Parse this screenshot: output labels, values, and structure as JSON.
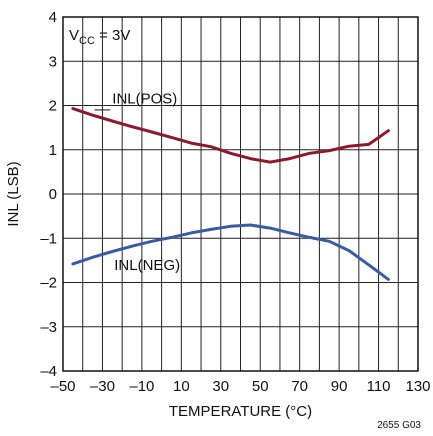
{
  "chart_data": {
    "type": "line",
    "title": "",
    "xlabel": "TEMPERATURE (°C)",
    "ylabel": "INL (LSB)",
    "xlim": [
      -50,
      130
    ],
    "ylim": [
      -4,
      4
    ],
    "x_ticks": [
      -50,
      -30,
      -10,
      10,
      30,
      50,
      70,
      90,
      110,
      130
    ],
    "x_tick_labels": [
      "–50",
      "–30",
      "–10",
      "10",
      "30",
      "50",
      "70",
      "90",
      "110",
      "130"
    ],
    "y_ticks": [
      -4,
      -3,
      -2,
      -1,
      0,
      1,
      2,
      3,
      4
    ],
    "y_tick_labels": [
      "–4",
      "–3",
      "–2",
      "–1",
      "0",
      "1",
      "2",
      "3",
      "4"
    ],
    "grid": true,
    "annotation": {
      "main": "V",
      "sub": "CC",
      "rest": " = 3V"
    },
    "figure_id": "2655 G03",
    "series": [
      {
        "name": "INL(POS)",
        "color": "#8b1a2f",
        "x": [
          -45,
          -35,
          -25,
          -15,
          -5,
          5,
          15,
          25,
          35,
          45,
          55,
          65,
          75,
          85,
          95,
          105,
          115
        ],
        "y": [
          1.93,
          1.78,
          1.65,
          1.52,
          1.4,
          1.28,
          1.15,
          1.07,
          0.92,
          0.8,
          0.72,
          0.8,
          0.92,
          0.98,
          1.08,
          1.12,
          1.43
        ]
      },
      {
        "name": "INL(NEG)",
        "color": "#3a5ba0",
        "x": [
          -45,
          -35,
          -25,
          -15,
          -5,
          5,
          15,
          25,
          35,
          45,
          55,
          65,
          75,
          85,
          95,
          105,
          115
        ],
        "y": [
          -1.58,
          -1.43,
          -1.3,
          -1.18,
          -1.07,
          -0.98,
          -0.88,
          -0.8,
          -0.73,
          -0.7,
          -0.77,
          -0.88,
          -0.98,
          -1.07,
          -1.28,
          -1.6,
          -1.93
        ]
      }
    ]
  }
}
